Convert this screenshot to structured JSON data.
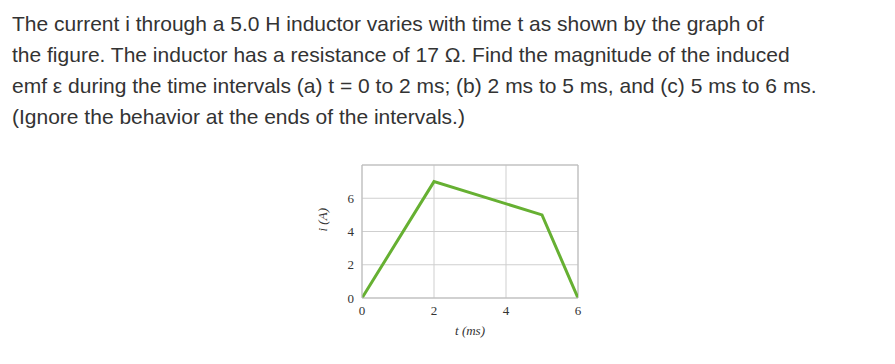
{
  "question": {
    "lines": [
      "The current i through a 5.0 H inductor varies with time t as shown by the graph of",
      "the figure. The inductor has a resistance of 17 Ω. Find the magnitude of the induced",
      "emf ε during the time intervals (a) t = 0 to 2 ms; (b) 2 ms to 5 ms, and (c) 5 ms to 6 ms.",
      "(Ignore the behavior at the ends of the intervals.)"
    ]
  },
  "chart_data": {
    "type": "line",
    "x": [
      0,
      2,
      5,
      6
    ],
    "values": [
      0,
      7,
      5,
      0
    ],
    "color": "#66b032",
    "xlabel": "t (ms)",
    "ylabel": "i (A)",
    "xlim": [
      0,
      6
    ],
    "ylim": [
      0,
      8
    ],
    "xticks": [
      0,
      2,
      4,
      6
    ],
    "yticks": [
      0,
      2,
      4,
      6
    ],
    "grid": true
  }
}
